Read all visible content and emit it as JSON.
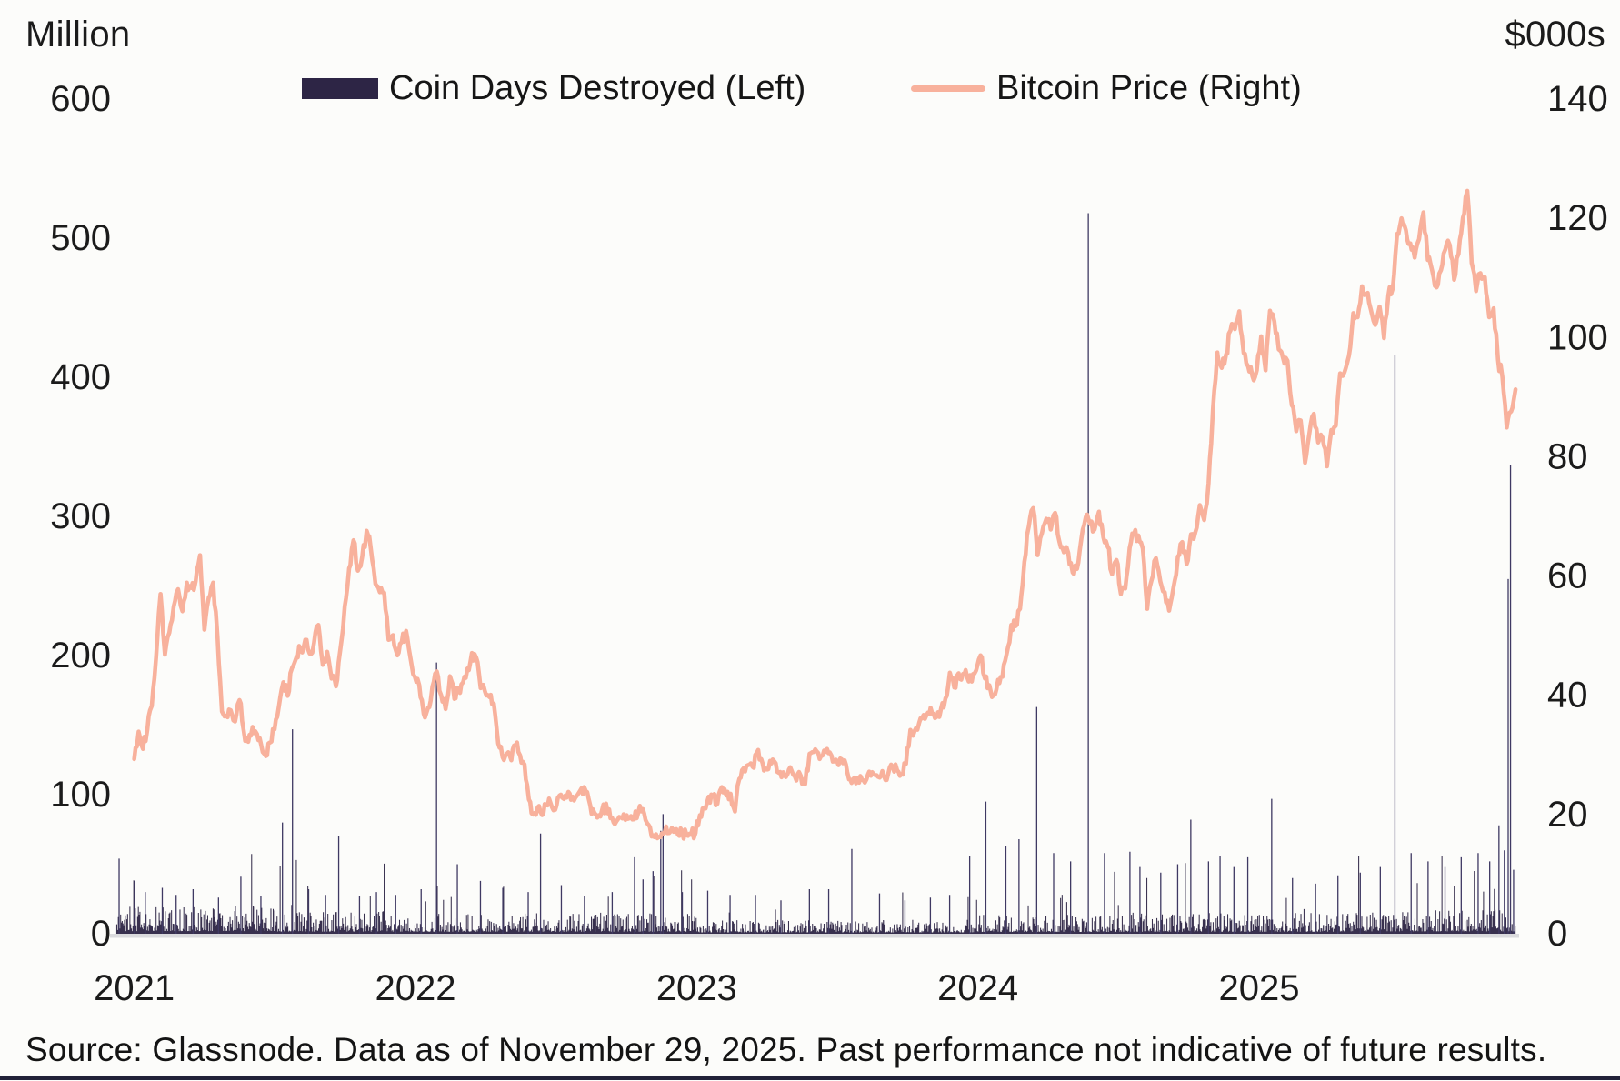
{
  "page": {
    "header_left": "Million",
    "header_right": "$000s",
    "footer": "Source: Glassnode. Data as of November 29, 2025. Past performance not indicative of future results."
  },
  "legend": {
    "items": [
      {
        "label": "Coin Days Destroyed (Left)",
        "marker": "bar-swatch",
        "color": "#2d2545"
      },
      {
        "label": "Bitcoin Price (Right)",
        "marker": "line-swatch",
        "color": "#f8b19c"
      }
    ]
  },
  "chart_data": {
    "type": "combo",
    "title": "",
    "grid": false,
    "legend_position": "top",
    "background": "#fcfcfa",
    "baseline_color": "#dadadd",
    "left_axis": {
      "title": "Million",
      "range": [
        0,
        600
      ],
      "ticks": [
        600,
        500,
        400,
        300,
        200,
        100,
        0
      ]
    },
    "right_axis": {
      "title": "$000s",
      "range": [
        0,
        140
      ],
      "ticks": [
        140,
        120,
        100,
        80,
        60,
        40,
        20,
        0
      ]
    },
    "x_axis": {
      "range": [
        2020.93,
        2025.915
      ],
      "tick_years": [
        2021,
        2022,
        2023,
        2024,
        2025
      ],
      "tick_labels": [
        "2021",
        "2022",
        "2023",
        "2024",
        "2025"
      ]
    },
    "series": [
      {
        "name": "Coin Days Destroyed (Left)",
        "type": "bar",
        "axis": "left",
        "unit": "million coin days destroyed (daily)",
        "color": "#2d2545",
        "spike_color": "#3f3963",
        "notable_spikes": [
          [
            2020.945,
            54
          ],
          [
            2021.0,
            38
          ],
          [
            2021.04,
            30
          ],
          [
            2021.1,
            33
          ],
          [
            2021.15,
            28
          ],
          [
            2021.21,
            32
          ],
          [
            2021.3,
            26
          ],
          [
            2021.38,
            41
          ],
          [
            2021.45,
            27
          ],
          [
            2021.528,
            80
          ],
          [
            2021.563,
            147
          ],
          [
            2021.62,
            32
          ],
          [
            2021.68,
            28
          ],
          [
            2021.727,
            70
          ],
          [
            2021.8,
            27
          ],
          [
            2021.86,
            30
          ],
          [
            2021.93,
            28
          ],
          [
            2022.02,
            32
          ],
          [
            2022.074,
            195
          ],
          [
            2022.15,
            50
          ],
          [
            2022.23,
            38
          ],
          [
            2022.31,
            33
          ],
          [
            2022.4,
            30
          ],
          [
            2022.444,
            72
          ],
          [
            2022.52,
            35
          ],
          [
            2022.6,
            27
          ],
          [
            2022.7,
            30
          ],
          [
            2022.78,
            55
          ],
          [
            2022.81,
            39
          ],
          [
            2022.845,
            45
          ],
          [
            2022.872,
            74
          ],
          [
            2022.881,
            86
          ],
          [
            2022.95,
            30
          ],
          [
            2023.04,
            31
          ],
          [
            2023.12,
            28
          ],
          [
            2023.21,
            28
          ],
          [
            2023.3,
            24
          ],
          [
            2023.4,
            32
          ],
          [
            2023.47,
            32
          ],
          [
            2023.553,
            61
          ],
          [
            2023.65,
            29
          ],
          [
            2023.74,
            24
          ],
          [
            2023.83,
            26
          ],
          [
            2023.9,
            28
          ],
          [
            2023.97,
            56
          ],
          [
            2024.029,
            95
          ],
          [
            2024.1,
            63
          ],
          [
            2024.145,
            68
          ],
          [
            2024.209,
            163
          ],
          [
            2024.27,
            58
          ],
          [
            2024.33,
            52
          ],
          [
            2024.392,
            518
          ],
          [
            2024.45,
            58
          ],
          [
            2024.54,
            59
          ],
          [
            2024.575,
            48
          ],
          [
            2024.65,
            44
          ],
          [
            2024.71,
            50
          ],
          [
            2024.756,
            82
          ],
          [
            2024.82,
            52
          ],
          [
            2024.86,
            56
          ],
          [
            2024.91,
            48
          ],
          [
            2024.96,
            55
          ],
          [
            2025.045,
            97
          ],
          [
            2025.12,
            40
          ],
          [
            2025.2,
            36
          ],
          [
            2025.28,
            42
          ],
          [
            2025.36,
            44
          ],
          [
            2025.43,
            48
          ],
          [
            2025.482,
            416
          ],
          [
            2025.54,
            58
          ],
          [
            2025.6,
            52
          ],
          [
            2025.66,
            48
          ],
          [
            2025.72,
            55
          ],
          [
            2025.78,
            58
          ],
          [
            2025.82,
            52
          ],
          [
            2025.852,
            78
          ],
          [
            2025.872,
            60
          ],
          [
            2025.886,
            255
          ],
          [
            2025.894,
            337
          ],
          [
            2025.905,
            46
          ]
        ],
        "baseline_noise": {
          "description": "dense low-level daily background bars (synthetic texture reproducing the noise floor)",
          "seed": 20251129,
          "era_base": [
            [
              2020.93,
              16
            ],
            [
              2021.5,
              13
            ],
            [
              2022.0,
              12
            ],
            [
              2023.0,
              8
            ],
            [
              2024.0,
              11
            ],
            [
              2024.5,
              12
            ],
            [
              2025.3,
              14
            ]
          ],
          "max": 70
        }
      },
      {
        "name": "Bitcoin Price (Right)",
        "type": "line",
        "axis": "right",
        "unit": "$000s",
        "color": "#f8b19c",
        "x_start": 2021.0,
        "x_end": 2025.912,
        "values": [
          29.3,
          33.9,
          31.0,
          34.3,
          38.2,
          46.5,
          57.0,
          46.8,
          50.5,
          54.9,
          57.8,
          54.1,
          58.9,
          58.0,
          59.1,
          63.5,
          51.0,
          56.4,
          58.9,
          49.7,
          37.3,
          36.6,
          37.5,
          35.6,
          39.2,
          33.9,
          32.2,
          34.7,
          33.5,
          31.5,
          29.8,
          32.1,
          34.3,
          38.2,
          42.2,
          39.9,
          44.6,
          46.4,
          47.8,
          49.3,
          47.0,
          48.8,
          51.8,
          45.1,
          47.3,
          42.8,
          41.5,
          47.7,
          54.9,
          61.3,
          66.0,
          60.9,
          63.3,
          67.6,
          64.3,
          58.7,
          57.3,
          57.2,
          49.3,
          50.1,
          46.7,
          48.9,
          50.8,
          46.2,
          43.1,
          41.7,
          36.9,
          37.9,
          41.5,
          44.0,
          40.0,
          37.7,
          43.2,
          39.4,
          41.1,
          42.2,
          44.5,
          47.1,
          46.3,
          41.2,
          40.6,
          39.7,
          38.6,
          31.9,
          29.6,
          30.2,
          29.1,
          31.7,
          29.9,
          28.4,
          22.5,
          20.0,
          21.2,
          19.9,
          21.6,
          21.8,
          20.8,
          23.2,
          22.6,
          23.8,
          23.0,
          23.2,
          24.4,
          23.9,
          21.5,
          20.2,
          19.9,
          21.7,
          20.2,
          19.4,
          18.9,
          19.5,
          19.1,
          19.4,
          19.2,
          20.5,
          20.9,
          18.5,
          16.3,
          16.7,
          16.2,
          17.1,
          16.9,
          17.1,
          16.6,
          16.8,
          16.5,
          16.6,
          16.9,
          19.9,
          21.1,
          23.0,
          23.1,
          21.8,
          24.6,
          23.2,
          23.5,
          20.5,
          26.0,
          27.8,
          28.3,
          28.0,
          30.4,
          29.3,
          27.7,
          29.0,
          28.9,
          27.0,
          27.1,
          26.8,
          27.2,
          25.7,
          26.5,
          25.1,
          30.2,
          30.5,
          30.3,
          29.9,
          31.0,
          29.9,
          29.2,
          29.4,
          29.1,
          25.9,
          26.0,
          26.1,
          25.8,
          25.9,
          26.5,
          26.6,
          26.2,
          26.4,
          27.0,
          27.9,
          27.4,
          26.8,
          28.5,
          34.2,
          34.1,
          35.4,
          36.7,
          37.1,
          36.9,
          36.4,
          37.8,
          39.5,
          43.8,
          41.3,
          43.7,
          43.6,
          42.9,
          42.3,
          44.2,
          46.7,
          42.8,
          41.7,
          40.0,
          42.6,
          43.1,
          47.1,
          51.8,
          51.6,
          54.5,
          62.4,
          68.3,
          71.4,
          63.5,
          67.2,
          69.6,
          67.8,
          70.6,
          65.7,
          64.0,
          63.9,
          60.6,
          61.2,
          66.3,
          69.9,
          68.7,
          67.8,
          70.8,
          66.5,
          64.9,
          60.3,
          62.7,
          57.0,
          57.9,
          64.7,
          67.1,
          66.8,
          64.6,
          54.5,
          59.3,
          63.0,
          59.1,
          57.3,
          54.2,
          58.1,
          63.3,
          65.7,
          62.0,
          67.0,
          67.4,
          71.9,
          69.4,
          75.6,
          88.0,
          97.5,
          94.9,
          97.2,
          101.2,
          101.4,
          104.4,
          97.4,
          95.2,
          93.5,
          94.5,
          100.2,
          94.5,
          104.5,
          102.7,
          98.0,
          96.5,
          96.1,
          88.6,
          84.3,
          86.1,
          79.0,
          84.0,
          87.2,
          82.4,
          83.2,
          78.4,
          84.5,
          85.2,
          94.0,
          94.2,
          96.9,
          104.1,
          103.4,
          108.6,
          107.2,
          104.7,
          102.1,
          105.2,
          99.9,
          107.1,
          108.2,
          117.4,
          120.0,
          118.0,
          115.8,
          113.4,
          116.5,
          121.0,
          113.0,
          111.2,
          108.4,
          111.3,
          114.8,
          115.5,
          109.7,
          114.0,
          120.1,
          124.6,
          112.5,
          107.8,
          110.8,
          110.1,
          103.4,
          104.9,
          96.3,
          93.4,
          84.9,
          87.6,
          91.3
        ]
      }
    ],
    "source_note": "Source: Glassnode. Data as of November 29, 2025. Past performance not indicative of future results."
  }
}
